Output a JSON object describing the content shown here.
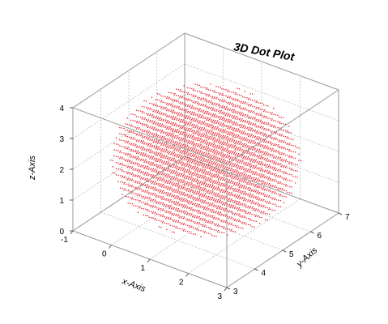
{
  "chart_data": {
    "type": "scatter",
    "subtype": "3d-dot-plot",
    "title": "3D Dot Plot",
    "xlabel": "x-Axis",
    "ylabel": "y-Axis",
    "zlabel": "z-Axis",
    "xlim": [
      -1,
      3
    ],
    "ylim": [
      3,
      7
    ],
    "zlim": [
      0,
      4
    ],
    "xticks": [
      "-1",
      "0",
      "1",
      "2",
      "3"
    ],
    "yticks": [
      "3",
      "4",
      "5",
      "6",
      "7"
    ],
    "zticks": [
      "0",
      "1",
      "2",
      "3",
      "4"
    ],
    "grid": true,
    "marker_color": "#e8202a",
    "box_color": "#9a9a9a",
    "series": [
      {
        "shape": "sphere",
        "center": [
          1,
          5,
          2
        ],
        "radius": 2,
        "step": 0.2
      }
    ]
  }
}
